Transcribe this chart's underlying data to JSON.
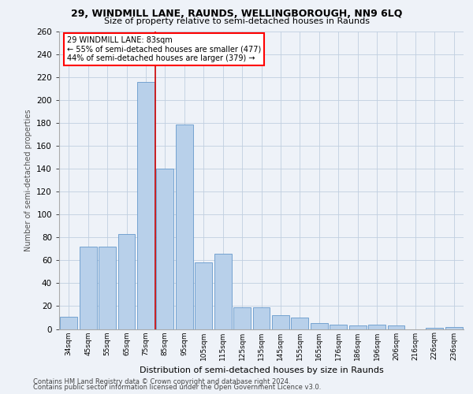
{
  "title1": "29, WINDMILL LANE, RAUNDS, WELLINGBOROUGH, NN9 6LQ",
  "title2": "Size of property relative to semi-detached houses in Raunds",
  "xlabel": "Distribution of semi-detached houses by size in Raunds",
  "ylabel": "Number of semi-detached properties",
  "categories": [
    "34sqm",
    "45sqm",
    "55sqm",
    "65sqm",
    "75sqm",
    "85sqm",
    "95sqm",
    "105sqm",
    "115sqm",
    "125sqm",
    "135sqm",
    "145sqm",
    "155sqm",
    "165sqm",
    "176sqm",
    "186sqm",
    "196sqm",
    "206sqm",
    "216sqm",
    "226sqm",
    "236sqm"
  ],
  "values": [
    11,
    72,
    72,
    83,
    216,
    140,
    179,
    58,
    66,
    19,
    19,
    12,
    10,
    5,
    4,
    3,
    4,
    3,
    0,
    1,
    2
  ],
  "bar_color": "#b8d0ea",
  "bar_edge_color": "#6699cc",
  "vline_color": "#cc0000",
  "vline_x_idx": 4.5,
  "annotation_line1": "29 WINDMILL LANE: 83sqm",
  "annotation_line2": "← 55% of semi-detached houses are smaller (477)",
  "annotation_line3": "44% of semi-detached houses are larger (379) →",
  "ylim": [
    0,
    260
  ],
  "yticks": [
    0,
    20,
    40,
    60,
    80,
    100,
    120,
    140,
    160,
    180,
    200,
    220,
    240,
    260
  ],
  "footer1": "Contains HM Land Registry data © Crown copyright and database right 2024.",
  "footer2": "Contains public sector information licensed under the Open Government Licence v3.0.",
  "bg_color": "#eef2f8",
  "plot_bg_color": "#eef2f8"
}
